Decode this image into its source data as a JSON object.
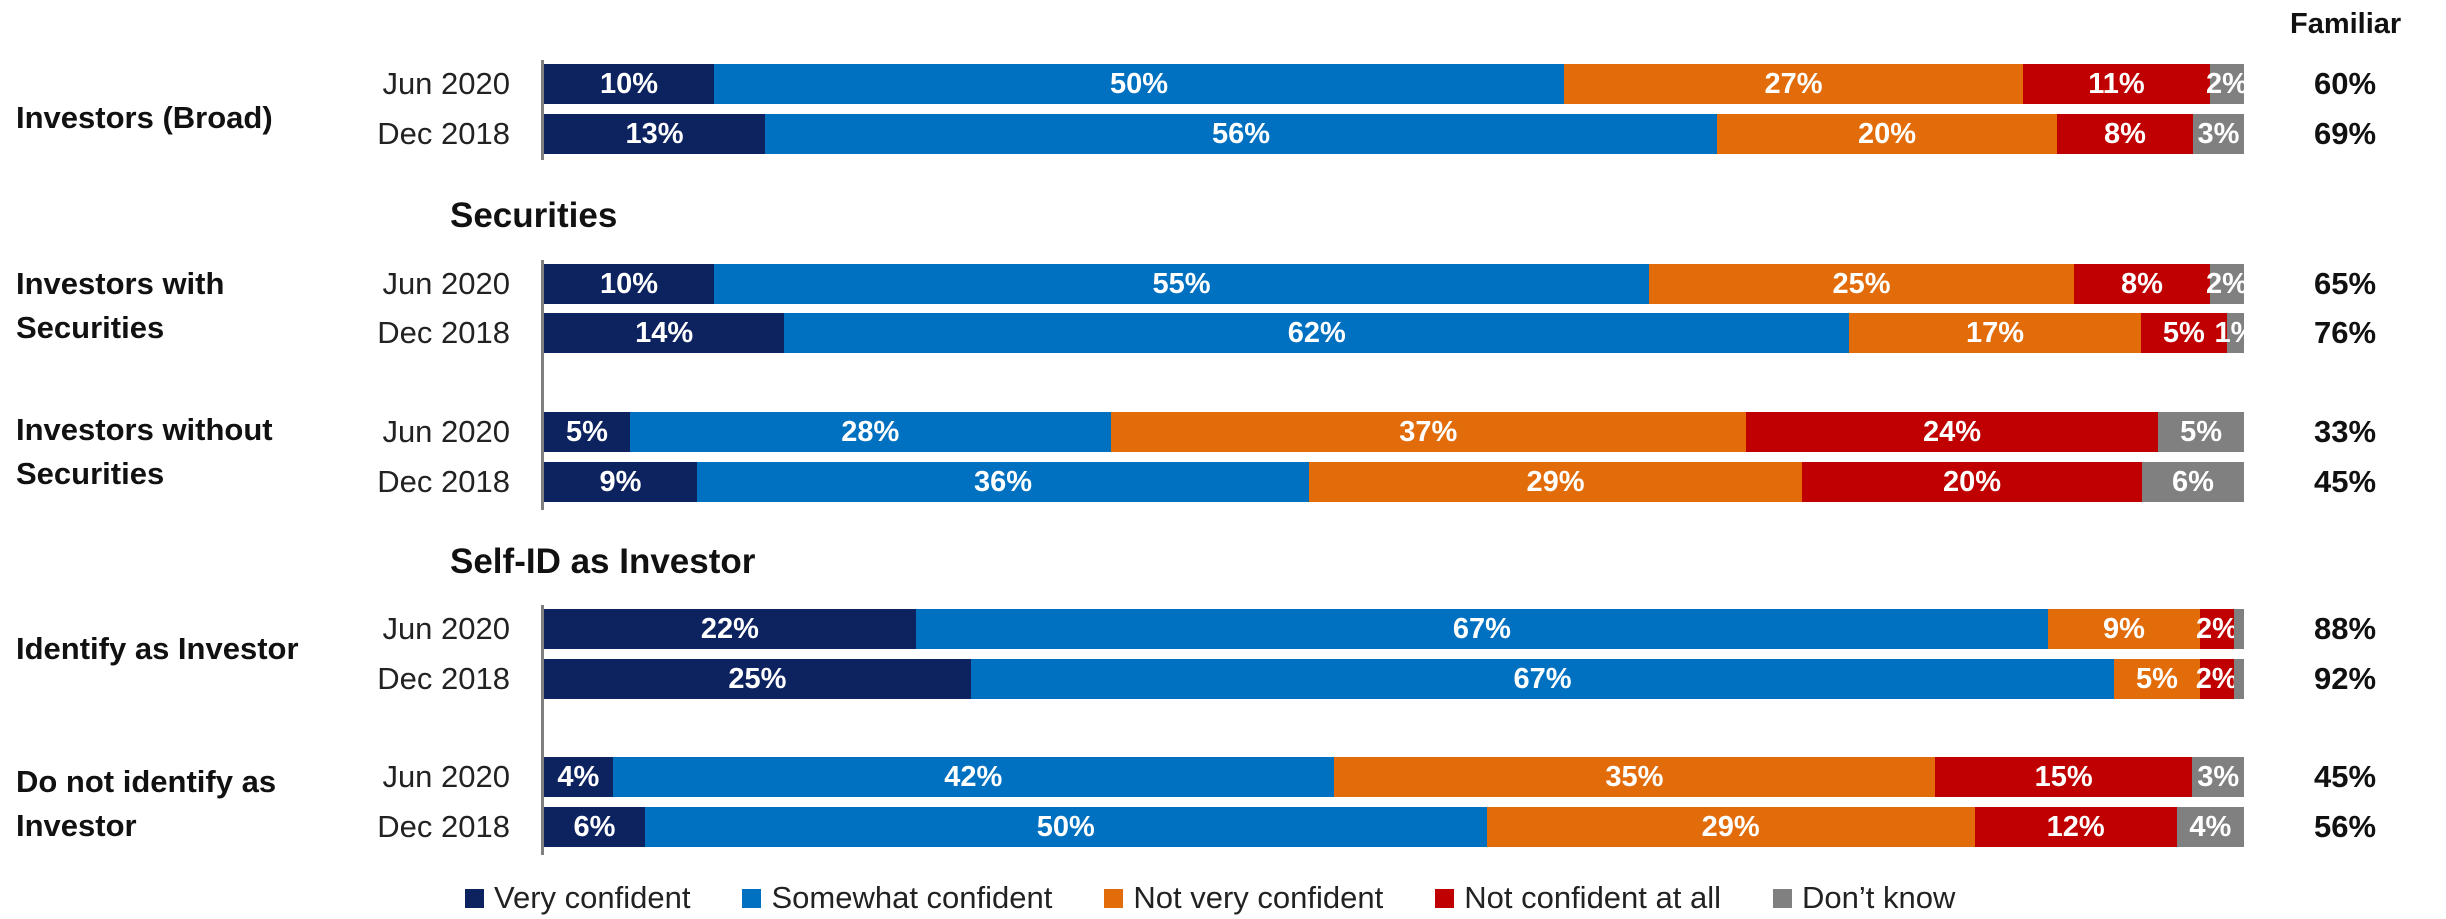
{
  "chart_data": {
    "type": "bar",
    "orientation": "horizontal-stacked-100",
    "familiar_header": "Familiar",
    "series": [
      {
        "name": "Very confident",
        "color": "#0d2360"
      },
      {
        "name": "Somewhat confident",
        "color": "#0070c0"
      },
      {
        "name": "Not very confident",
        "color": "#e36c0a"
      },
      {
        "name": "Not confident at all",
        "color": "#c00000"
      },
      {
        "name": "Don’t know",
        "color": "#808080"
      }
    ],
    "section_titles": [
      "Securities",
      "Self-ID as Investor"
    ],
    "groups": [
      {
        "label_lines": [
          "Investors (Broad)"
        ],
        "rows": [
          {
            "period": "Jun 2020",
            "values": [
              10,
              50,
              27,
              11,
              2
            ],
            "labels": [
              "10%",
              "50%",
              "27%",
              "11%",
              "2%"
            ],
            "familiar": "60%"
          },
          {
            "period": "Dec 2018",
            "values": [
              13,
              56,
              20,
              8,
              3
            ],
            "labels": [
              "13%",
              "56%",
              "20%",
              "8%",
              "3%"
            ],
            "familiar": "69%"
          }
        ]
      },
      {
        "label_lines": [
          "Investors with",
          "Securities"
        ],
        "rows": [
          {
            "period": "Jun 2020",
            "values": [
              10,
              55,
              25,
              8,
              2
            ],
            "labels": [
              "10%",
              "55%",
              "25%",
              "8%",
              "2%"
            ],
            "familiar": "65%"
          },
          {
            "period": "Dec 2018",
            "values": [
              14,
              62,
              17,
              5,
              1
            ],
            "labels": [
              "14%",
              "62%",
              "17%",
              "5%",
              "1%"
            ],
            "familiar": "76%"
          }
        ]
      },
      {
        "label_lines": [
          "Investors without",
          "Securities"
        ],
        "rows": [
          {
            "period": "Jun 2020",
            "values": [
              5,
              28,
              37,
              24,
              5
            ],
            "labels": [
              "5%",
              "28%",
              "37%",
              "24%",
              "5%"
            ],
            "familiar": "33%"
          },
          {
            "period": "Dec 2018",
            "values": [
              9,
              36,
              29,
              20,
              6
            ],
            "labels": [
              "9%",
              "36%",
              "29%",
              "20%",
              "6%"
            ],
            "familiar": "45%"
          }
        ]
      },
      {
        "label_lines": [
          "Identify as Investor"
        ],
        "rows": [
          {
            "period": "Jun 2020",
            "values": [
              22,
              67,
              9,
              2,
              0.6
            ],
            "labels": [
              "22%",
              "67%",
              "9%",
              "2%",
              ""
            ],
            "familiar": "88%"
          },
          {
            "period": "Dec 2018",
            "values": [
              25,
              67,
              5,
              2,
              0.6
            ],
            "labels": [
              "25%",
              "67%",
              "5%",
              "2%",
              ""
            ],
            "familiar": "92%"
          }
        ]
      },
      {
        "label_lines": [
          "Do not identify as",
          "Investor"
        ],
        "rows": [
          {
            "period": "Jun 2020",
            "values": [
              4,
              42,
              35,
              15,
              3
            ],
            "labels": [
              "4%",
              "42%",
              "35%",
              "15%",
              "3%"
            ],
            "familiar": "45%"
          },
          {
            "period": "Dec 2018",
            "values": [
              6,
              50,
              29,
              12,
              4
            ],
            "labels": [
              "6%",
              "50%",
              "29%",
              "12%",
              "4%"
            ],
            "familiar": "56%"
          }
        ]
      }
    ]
  }
}
